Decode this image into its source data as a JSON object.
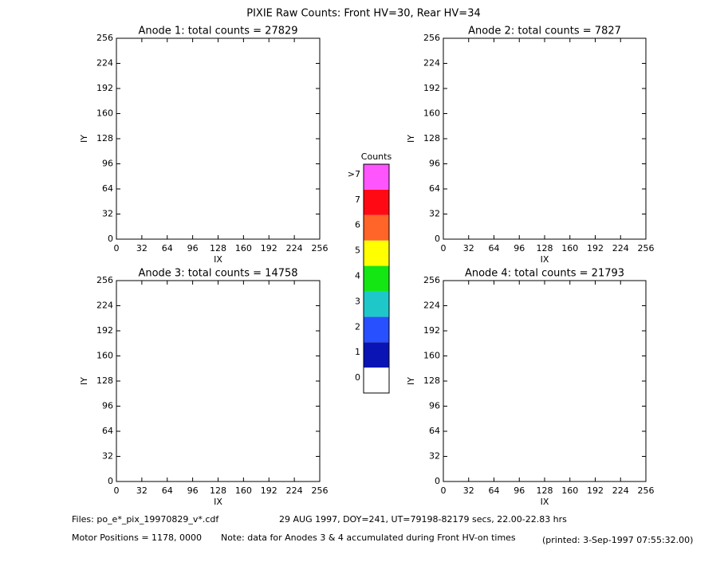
{
  "title": "PIXIE Raw Counts:  Front HV=30, Rear HV=34",
  "chart_data": [
    {
      "type": "heatmap",
      "title": "Anode 1: total counts = 27829",
      "x_label": "IX",
      "y_label": "IY",
      "xlim": [
        0,
        256
      ],
      "ylim": [
        0,
        256
      ],
      "xticks": [
        0,
        32,
        64,
        96,
        128,
        160,
        192,
        224,
        256
      ],
      "yticks": [
        0,
        32,
        64,
        96,
        128,
        160,
        192,
        224,
        256
      ]
    },
    {
      "type": "heatmap",
      "title": "Anode 2: total counts = 7827",
      "x_label": "IX",
      "y_label": "IY",
      "xlim": [
        0,
        256
      ],
      "ylim": [
        0,
        256
      ],
      "xticks": [
        0,
        32,
        64,
        96,
        128,
        160,
        192,
        224,
        256
      ],
      "yticks": [
        0,
        32,
        64,
        96,
        128,
        160,
        192,
        224,
        256
      ]
    },
    {
      "type": "heatmap",
      "title": "Anode 3: total counts = 14758",
      "x_label": "IX",
      "y_label": "IY",
      "xlim": [
        0,
        256
      ],
      "ylim": [
        0,
        256
      ],
      "xticks": [
        0,
        32,
        64,
        96,
        128,
        160,
        192,
        224,
        256
      ],
      "yticks": [
        0,
        32,
        64,
        96,
        128,
        160,
        192,
        224,
        256
      ]
    },
    {
      "type": "heatmap",
      "title": "Anode 4: total counts = 21793",
      "x_label": "IX",
      "y_label": "IY",
      "xlim": [
        0,
        256
      ],
      "ylim": [
        0,
        256
      ],
      "xticks": [
        0,
        32,
        64,
        96,
        128,
        160,
        192,
        224,
        256
      ],
      "yticks": [
        0,
        32,
        64,
        96,
        128,
        160,
        192,
        224,
        256
      ]
    }
  ],
  "colorbar": {
    "title": "Counts",
    "ticks": [
      0,
      1,
      2,
      3,
      4,
      5,
      6,
      7,
      {
        "value": 8,
        "label": ">7"
      }
    ],
    "colors": [
      "#ffffff",
      "#0a14b4",
      "#2850ff",
      "#1ec8c8",
      "#14e614",
      "#ffff00",
      "#ff6428",
      "#ff0a14",
      "#ff55ff"
    ]
  },
  "footer": {
    "files": "Files: po_e*_pix_19970829_v*.cdf",
    "info": "29 AUG 1997, DOY=241, UT=79198-82179 secs, 22.00-22.83 hrs",
    "motor": "Motor Positions = 1178, 0000",
    "note": "Note: data for Anodes 3 & 4 accumulated during Front HV-on times",
    "printed": "(printed:  3-Sep-1997 07:55:32.00)"
  }
}
